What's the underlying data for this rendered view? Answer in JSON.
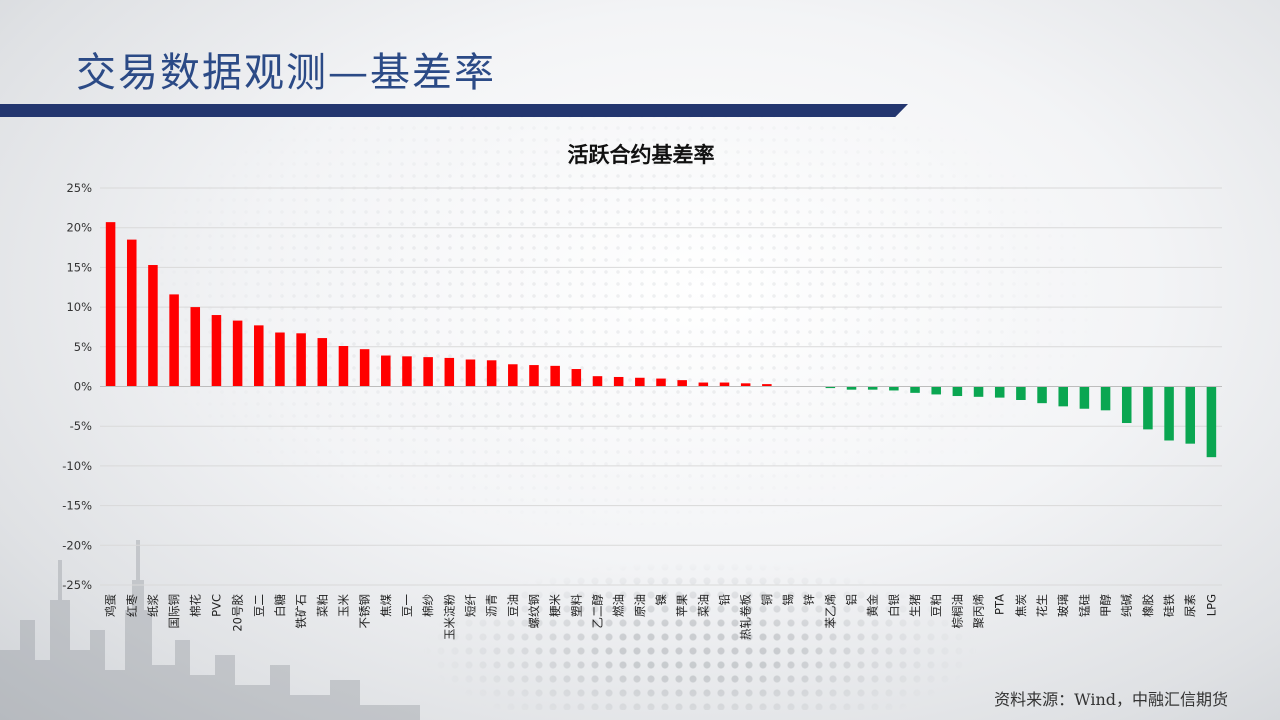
{
  "header": {
    "title": "交易数据观测—基差率"
  },
  "footer": {
    "source": "资料来源：Wind，中融汇信期货"
  },
  "colors": {
    "positive": "#ff0000",
    "negative": "#0aa651",
    "title": "#2b4a86",
    "title_bar": "#23366f"
  },
  "chart_data": {
    "type": "bar",
    "title": "活跃合约基差率",
    "xlabel": "",
    "ylabel": "",
    "ylim": [
      -25,
      25
    ],
    "yticks": [
      25,
      20,
      15,
      10,
      5,
      0,
      -5,
      -10,
      -15,
      -20,
      -25
    ],
    "ytick_labels": [
      "25%",
      "20%",
      "15%",
      "10%",
      "5%",
      "0%",
      "-5%",
      "-10%",
      "-15%",
      "-20%",
      "-25%"
    ],
    "grid": true,
    "legend": "none",
    "categories": [
      "鸡蛋",
      "红枣",
      "纸浆",
      "国际铜",
      "棉花",
      "PVC",
      "20号胶",
      "豆二",
      "白糖",
      "铁矿石",
      "菜粕",
      "玉米",
      "不锈钢",
      "焦煤",
      "豆一",
      "棉纱",
      "玉米淀粉",
      "短纤",
      "沥青",
      "豆油",
      "螺纹钢",
      "粳米",
      "塑料",
      "乙二醇",
      "燃油",
      "原油",
      "镍",
      "苹果",
      "菜油",
      "铅",
      "热轧卷板",
      "铜",
      "锡",
      "锌",
      "苯乙烯",
      "铝",
      "黄金",
      "白银",
      "生猪",
      "豆粕",
      "棕榈油",
      "聚丙烯",
      "PTA",
      "焦炭",
      "花生",
      "玻璃",
      "锰硅",
      "甲醇",
      "纯碱",
      "橡胶",
      "硅铁",
      "尿素",
      "LPG"
    ],
    "values": [
      20.7,
      18.5,
      15.3,
      11.6,
      10.0,
      9.0,
      8.3,
      7.7,
      6.8,
      6.7,
      6.1,
      5.1,
      4.7,
      3.9,
      3.8,
      3.7,
      3.6,
      3.4,
      3.3,
      2.8,
      2.7,
      2.6,
      2.2,
      1.3,
      1.2,
      1.1,
      1.0,
      0.8,
      0.5,
      0.5,
      0.4,
      0.3,
      0.0,
      0.0,
      -0.2,
      -0.4,
      -0.4,
      -0.5,
      -0.8,
      -1.0,
      -1.2,
      -1.3,
      -1.4,
      -1.7,
      -2.1,
      -2.5,
      -2.8,
      -3.0,
      -4.6,
      -5.4,
      -6.8,
      -7.2,
      -8.9
    ]
  }
}
